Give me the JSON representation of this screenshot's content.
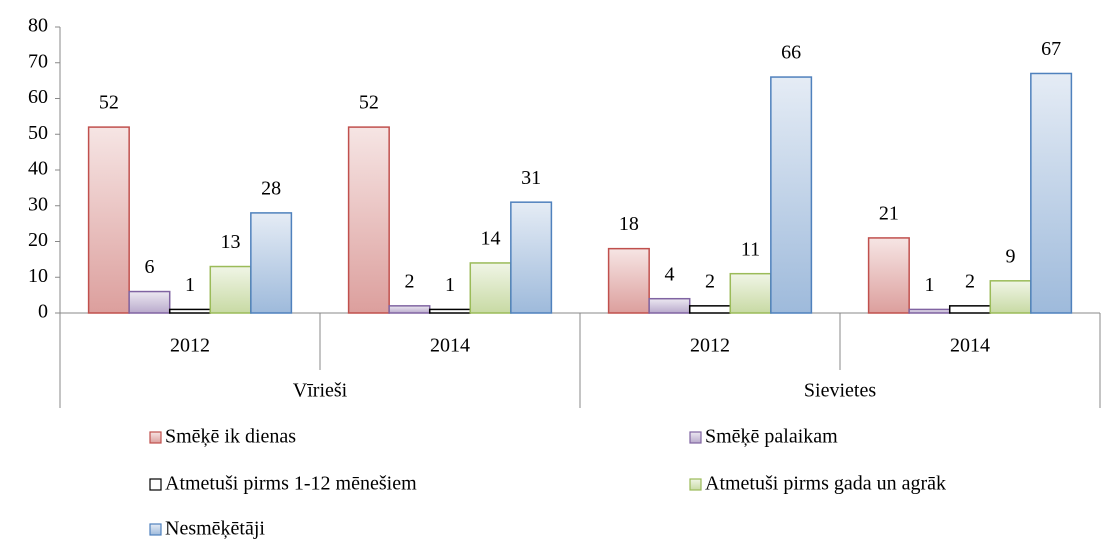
{
  "chart_data": {
    "type": "bar",
    "categories": [
      "2012",
      "2014",
      "2012",
      "2014"
    ],
    "group_labels": [
      "Vīrieši",
      "Sievietes"
    ],
    "series": [
      {
        "name": "Smēķē ik dienas",
        "color": "#c0504d",
        "values": [
          52,
          52,
          18,
          21
        ]
      },
      {
        "name": "Smēķē palaikam",
        "color": "#8064a2",
        "values": [
          6,
          2,
          4,
          1
        ]
      },
      {
        "name": "Atmetuši pirms 1-12 mēnešiem",
        "color": "#000000",
        "values": [
          1,
          1,
          2,
          2
        ]
      },
      {
        "name": "Atmetuši pirms gada un agrāk",
        "color": "#9bbb59",
        "values": [
          13,
          14,
          11,
          9
        ]
      },
      {
        "name": "Nesmēķētāji",
        "color": "#4f81bd",
        "values": [
          28,
          31,
          66,
          67
        ]
      }
    ],
    "ylim": [
      0,
      80
    ],
    "yticks": [
      0,
      10,
      20,
      30,
      40,
      50,
      60,
      70,
      80
    ],
    "grid": false,
    "legend": "bottom"
  }
}
